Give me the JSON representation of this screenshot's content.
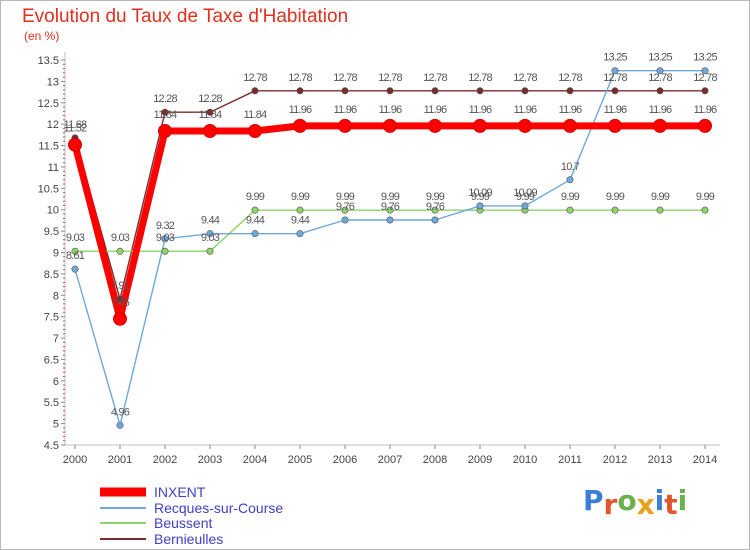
{
  "chart_data": {
    "type": "line",
    "title": "Evolution du Taux de Taxe d'Habitation",
    "ylabel": "(en %)",
    "xlabel": "",
    "x": [
      "2000",
      "2001",
      "2002",
      "2003",
      "2004",
      "2005",
      "2006",
      "2007",
      "2008",
      "2009",
      "2010",
      "2011",
      "2012",
      "2013",
      "2014"
    ],
    "ylim": [
      4.5,
      13.5
    ],
    "yticks": [
      "4.5",
      "5",
      "5.5",
      "6",
      "6.5",
      "7",
      "7.5",
      "8",
      "8.5",
      "9",
      "9.5",
      "10",
      "10.5",
      "11",
      "11.5",
      "12",
      "12.5",
      "13",
      "13.5"
    ],
    "grid": false,
    "legend": "bottom-left",
    "series": [
      {
        "name": "INXENT",
        "color": "#ff0000",
        "values": [
          11.52,
          7.45,
          11.84,
          11.84,
          11.84,
          11.96,
          11.96,
          11.96,
          11.96,
          11.96,
          11.96,
          11.96,
          11.96,
          11.96,
          11.96
        ],
        "labels": [
          "11.52",
          "7.45",
          "11.84",
          "11.84",
          "11.84",
          "11.96",
          "11.96",
          "11.96",
          "11.96",
          "11.96",
          "11.96",
          "11.96",
          "11.96",
          "11.96",
          "11.96"
        ]
      },
      {
        "name": "Recques-sur-Course",
        "color": "#6fa8dc",
        "values": [
          8.61,
          4.96,
          9.32,
          9.44,
          9.44,
          9.44,
          9.76,
          9.76,
          9.76,
          10.09,
          10.09,
          10.7,
          13.25,
          13.25,
          13.25
        ],
        "labels": [
          "8.61",
          "4.96",
          "9.32",
          "9.44",
          "9.44",
          "9.44",
          "9.76",
          "9.76",
          "9.76",
          "10.09",
          "10.09",
          "10.7",
          "13.25",
          "13.25",
          "13.25"
        ]
      },
      {
        "name": "Beussent",
        "color": "#8fd46a",
        "values": [
          9.03,
          9.03,
          9.03,
          9.03,
          9.99,
          9.99,
          9.99,
          9.99,
          9.99,
          9.99,
          9.99,
          9.99,
          9.99,
          9.99,
          9.99
        ],
        "labels": [
          "9.03",
          "9.03",
          "9.03",
          "9.03",
          "9.99",
          "9.99",
          "9.99",
          "9.99",
          "9.99",
          "9.99",
          "9.99",
          "9.99",
          "9.99",
          "9.99",
          "9.99"
        ]
      },
      {
        "name": "Bernieulles",
        "color": "#7b2d2d",
        "values": [
          11.68,
          7.91,
          12.28,
          12.28,
          12.78,
          12.78,
          12.78,
          12.78,
          12.78,
          12.78,
          12.78,
          12.78,
          12.78,
          12.78,
          12.78
        ],
        "labels": [
          "11.68",
          "7.91",
          "12.28",
          "12.28",
          "12.78",
          "12.78",
          "12.78",
          "12.78",
          "12.78",
          "12.78",
          "12.78",
          "12.78",
          "12.78",
          "12.78",
          "12.78"
        ]
      }
    ]
  },
  "logo": {
    "text": "Proxiti",
    "colors": [
      "#3a7fd5",
      "#e3562d",
      "#6ab04c",
      "#e8a21a",
      "#3a7fd5",
      "#e3562d",
      "#6ab04c"
    ]
  }
}
